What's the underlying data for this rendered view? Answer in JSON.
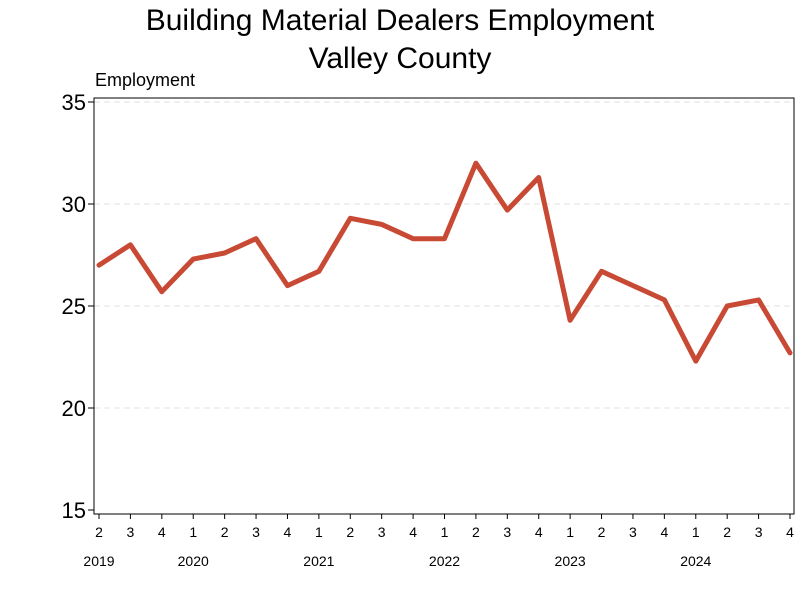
{
  "chart_data": {
    "type": "line",
    "title": [
      "Building Material Dealers Employment",
      "Valley County"
    ],
    "ylabel": "Employment",
    "xlabel": "",
    "ylim": [
      15,
      35
    ],
    "yticks": [
      15,
      20,
      25,
      30,
      35
    ],
    "grid": true,
    "legend": "none",
    "line_color": "#c84a35",
    "quarters": [
      "2",
      "3",
      "4",
      "1",
      "2",
      "3",
      "4",
      "1",
      "2",
      "3",
      "4",
      "1",
      "2",
      "3",
      "4",
      "1",
      "2",
      "3",
      "4",
      "1",
      "2",
      "3",
      "4"
    ],
    "years": [
      {
        "label": "2019",
        "start_index": 0
      },
      {
        "label": "2020",
        "start_index": 3
      },
      {
        "label": "2021",
        "start_index": 7
      },
      {
        "label": "2022",
        "start_index": 11
      },
      {
        "label": "2023",
        "start_index": 15
      },
      {
        "label": "2024",
        "start_index": 19
      }
    ],
    "series": [
      {
        "values": [
          27.0,
          28.0,
          25.7,
          27.3,
          27.6,
          28.3,
          26.0,
          26.7,
          29.3,
          29.0,
          28.3,
          28.3,
          32.0,
          29.7,
          31.3,
          24.3,
          26.7,
          26.0,
          25.3,
          22.3,
          25.0,
          25.3,
          22.7
        ]
      }
    ]
  }
}
